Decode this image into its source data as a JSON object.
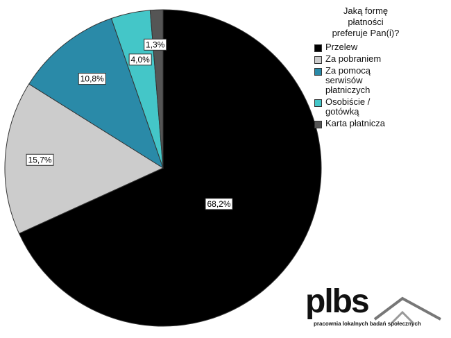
{
  "chart_data": {
    "type": "pie",
    "title": "Jaką formę płatności preferuje Pan(i)?",
    "title_lines": [
      "Jaką formę",
      "płatności",
      "preferuje Pan(i)?"
    ],
    "slices": [
      {
        "name": "Przelew",
        "value": 68.2,
        "label": "68,2%",
        "color": "#000000"
      },
      {
        "name": "Za pobraniem",
        "value": 15.7,
        "label": "15,7%",
        "color": "#cccccc"
      },
      {
        "name": "Za pomocą serwisów płatniczych",
        "value": 10.8,
        "label": "10,8%",
        "color": "#2a8aa8"
      },
      {
        "name": "Osobiście / gotówką",
        "value": 4.0,
        "label": "4,0%",
        "color": "#44c6c8"
      },
      {
        "name": "Karta płatnicza",
        "value": 1.3,
        "label": "1,3%",
        "color": "#555555"
      }
    ],
    "legend_position": "right"
  },
  "legend": {
    "items": [
      {
        "lines": [
          "Przelew"
        ],
        "color": "#000000"
      },
      {
        "lines": [
          "Za pobraniem"
        ],
        "color": "#cccccc"
      },
      {
        "lines": [
          "Za pomocą",
          "serwisów",
          "płatniczych"
        ],
        "color": "#2a8aa8"
      },
      {
        "lines": [
          "Osobiście /",
          "gotówką"
        ],
        "color": "#44c6c8"
      },
      {
        "lines": [
          "Karta płatnicza"
        ],
        "color": "#555555"
      }
    ]
  },
  "watermark": {
    "logo_text": "plbs",
    "subtitle": "pracownia lokalnych badań społecznych"
  }
}
